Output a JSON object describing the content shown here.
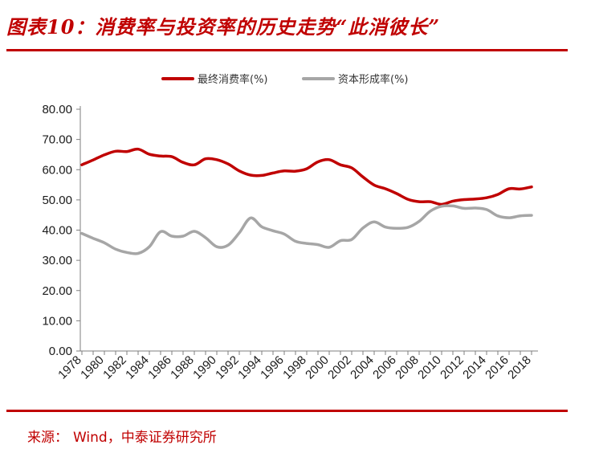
{
  "title": "图表10：消费率与投资率的历史走势“此消彼长”",
  "source": {
    "label": "来源：",
    "text": "Wind，中泰证券研究所"
  },
  "chart_data": {
    "type": "line",
    "x": [
      1978,
      1979,
      1980,
      1981,
      1982,
      1983,
      1984,
      1985,
      1986,
      1987,
      1988,
      1989,
      1990,
      1991,
      1992,
      1993,
      1994,
      1995,
      1996,
      1997,
      1998,
      1999,
      2000,
      2001,
      2002,
      2003,
      2004,
      2005,
      2006,
      2007,
      2008,
      2009,
      2010,
      2011,
      2012,
      2013,
      2014,
      2015,
      2016,
      2017,
      2018
    ],
    "x_tick_labels": [
      "1978",
      "1980",
      "1982",
      "1984",
      "1986",
      "1988",
      "1990",
      "1992",
      "1994",
      "1996",
      "1998",
      "2000",
      "2002",
      "2004",
      "2006",
      "2008",
      "2010",
      "2012",
      "2014",
      "2016",
      "2018"
    ],
    "series": [
      {
        "name": "最终消费率(%)",
        "color": "#c00000",
        "values": [
          61.6,
          63.2,
          64.9,
          66.1,
          66.0,
          66.8,
          65.1,
          64.5,
          64.3,
          62.4,
          61.6,
          63.6,
          63.3,
          61.9,
          59.6,
          58.2,
          58.1,
          58.9,
          59.6,
          59.5,
          60.3,
          62.6,
          63.3,
          61.6,
          60.6,
          57.6,
          54.9,
          53.7,
          52.1,
          50.2,
          49.4,
          49.4,
          48.5,
          49.6,
          50.1,
          50.3,
          50.7,
          51.8,
          53.7,
          53.6,
          54.3
        ]
      },
      {
        "name": "资本形成率(%)",
        "color": "#a6a6a6",
        "values": [
          38.9,
          37.3,
          35.8,
          33.7,
          32.6,
          32.3,
          34.5,
          39.5,
          38.0,
          38.0,
          39.6,
          37.5,
          34.5,
          35.0,
          39.1,
          44.0,
          41.1,
          39.8,
          38.7,
          36.3,
          35.6,
          35.2,
          34.3,
          36.5,
          36.9,
          40.7,
          42.7,
          41.0,
          40.6,
          40.9,
          42.9,
          46.3,
          47.9,
          48.0,
          47.2,
          47.3,
          46.8,
          44.7,
          44.1,
          44.7,
          44.9
        ]
      }
    ],
    "y_tick_labels": [
      "0.00",
      "10.00",
      "20.00",
      "30.00",
      "40.00",
      "50.00",
      "60.00",
      "70.00",
      "80.00"
    ],
    "ylim": [
      0,
      80
    ],
    "y_step": 10,
    "xlabel": "",
    "ylabel": "",
    "grid": false,
    "legend_position": "top-center"
  }
}
